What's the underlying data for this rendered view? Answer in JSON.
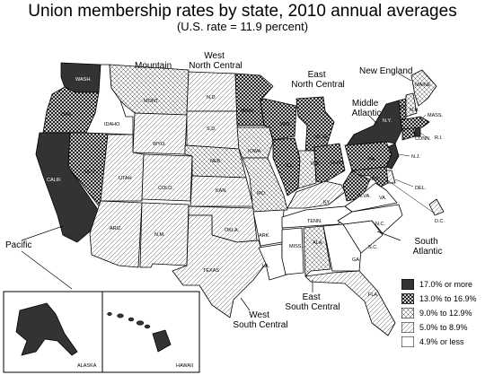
{
  "title": "Union membership rates by state, 2010 annual averages",
  "subtitle": "(U.S. rate = 11.9 percent)",
  "categories": [
    {
      "key": "c1",
      "label": "17.0% or more",
      "fill": "#333333"
    },
    {
      "key": "c2",
      "label": "13.0% to 16.9%",
      "pattern": "crosshatch"
    },
    {
      "key": "c3",
      "label": "9.0% to 12.9%",
      "pattern": "fine-crosshatch"
    },
    {
      "key": "c4",
      "label": "5.0% to 8.9%",
      "pattern": "diagonal"
    },
    {
      "key": "c5",
      "label": "4.9% or less",
      "fill": "#ffffff"
    }
  ],
  "regions": {
    "pacific": "Pacific",
    "mountain": "Mountain",
    "west_north_central": "West North Central",
    "east_north_central": "East North Central",
    "new_england": "New England",
    "middle_atlantic": "Middle Atlantic",
    "south_atlantic": "South Atlantic",
    "east_south_central": "East South Central",
    "west_south_central": "West South Central"
  },
  "states": [
    {
      "abbr": "WASH.",
      "class": "c1"
    },
    {
      "abbr": "ORE.",
      "class": "c2"
    },
    {
      "abbr": "CALIF.",
      "class": "c1"
    },
    {
      "abbr": "NEV.",
      "class": "c2"
    },
    {
      "abbr": "IDAHO",
      "class": "c5"
    },
    {
      "abbr": "MONT.",
      "class": "c3"
    },
    {
      "abbr": "WYO.",
      "class": "c4"
    },
    {
      "abbr": "UTAH",
      "class": "c4"
    },
    {
      "abbr": "COLO.",
      "class": "c4"
    },
    {
      "abbr": "ARIZ.",
      "class": "c4"
    },
    {
      "abbr": "N.M.",
      "class": "c4"
    },
    {
      "abbr": "N.D.",
      "class": "c4"
    },
    {
      "abbr": "S.D.",
      "class": "c4"
    },
    {
      "abbr": "NEB.",
      "class": "c3"
    },
    {
      "abbr": "KAN.",
      "class": "c4"
    },
    {
      "abbr": "MINN.",
      "class": "c2"
    },
    {
      "abbr": "IOWA",
      "class": "c3"
    },
    {
      "abbr": "MO.",
      "class": "c3"
    },
    {
      "abbr": "OKLA.",
      "class": "c4"
    },
    {
      "abbr": "TEXAS",
      "class": "c4"
    },
    {
      "abbr": "ARK.",
      "class": "c5"
    },
    {
      "abbr": "LA.",
      "class": "c5"
    },
    {
      "abbr": "WIS.",
      "class": "c2"
    },
    {
      "abbr": "MICH.",
      "class": "c2"
    },
    {
      "abbr": "ILL.",
      "class": "c2"
    },
    {
      "abbr": "IND.",
      "class": "c3"
    },
    {
      "abbr": "OHIO",
      "class": "c2"
    },
    {
      "abbr": "KY.",
      "class": "c4"
    },
    {
      "abbr": "TENN.",
      "class": "c5"
    },
    {
      "abbr": "MISS.",
      "class": "c5"
    },
    {
      "abbr": "ALA.",
      "class": "c3"
    },
    {
      "abbr": "GA.",
      "class": "c5"
    },
    {
      "abbr": "FLA.",
      "class": "c4"
    },
    {
      "abbr": "S.C.",
      "class": "c5"
    },
    {
      "abbr": "N.C.",
      "class": "c5"
    },
    {
      "abbr": "VA.",
      "class": "c5"
    },
    {
      "abbr": "W.VA.",
      "class": "c2"
    },
    {
      "abbr": "PA.",
      "class": "c2"
    },
    {
      "abbr": "N.Y.",
      "class": "c1"
    },
    {
      "abbr": "N.J.",
      "class": "c1"
    },
    {
      "abbr": "DEL.",
      "class": "c4"
    },
    {
      "abbr": "MD.",
      "class": "c2"
    },
    {
      "abbr": "D.C.",
      "class": "c4"
    },
    {
      "abbr": "CONN.",
      "class": "c2"
    },
    {
      "abbr": "R.I.",
      "class": "c1"
    },
    {
      "abbr": "MASS.",
      "class": "c2"
    },
    {
      "abbr": "VT.",
      "class": "c2"
    },
    {
      "abbr": "N.H.",
      "class": "c3"
    },
    {
      "abbr": "MAINE",
      "class": "c3"
    },
    {
      "abbr": "ALASKA",
      "class": "c1"
    },
    {
      "abbr": "HAWAII",
      "class": "c1"
    }
  ]
}
